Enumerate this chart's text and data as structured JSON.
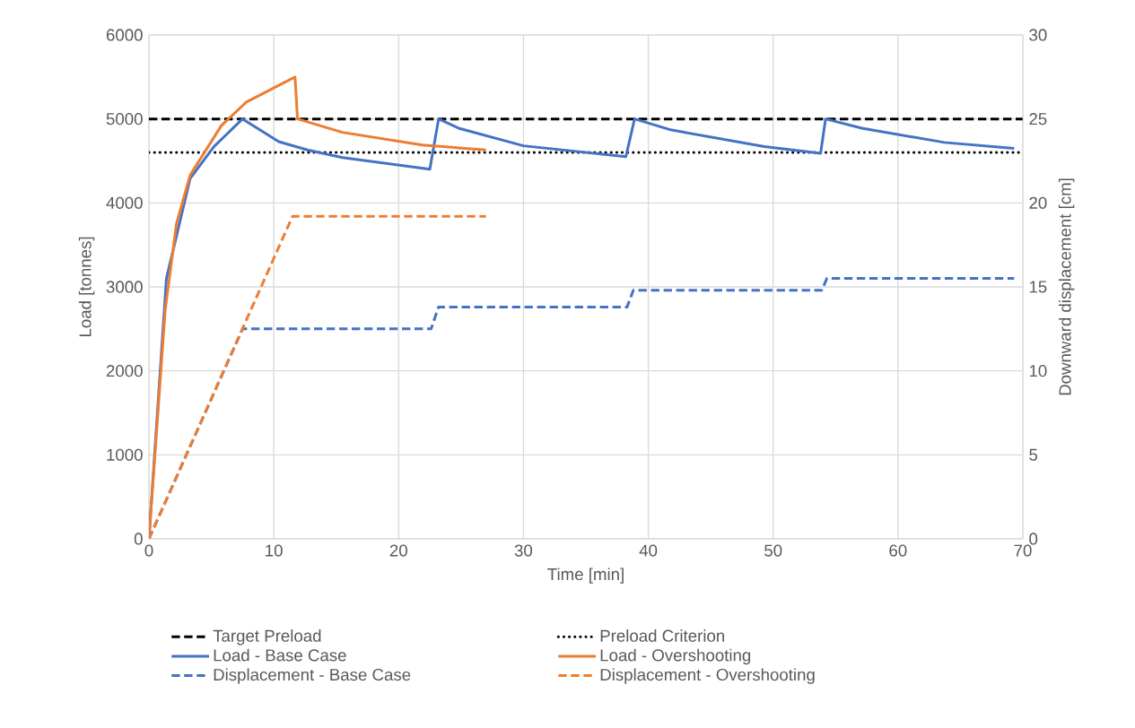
{
  "chart_data": {
    "type": "line",
    "xlabel": "Time [min]",
    "ylabel": "Load [tonnes]",
    "y2label": "Downward displacement [cm]",
    "xlim": [
      0,
      70
    ],
    "xticks": [
      0,
      10,
      20,
      30,
      40,
      50,
      60,
      70
    ],
    "ylim": [
      0,
      6000
    ],
    "yticks": [
      0,
      1000,
      2000,
      3000,
      4000,
      5000,
      6000
    ],
    "y2lim": [
      0,
      30
    ],
    "y2ticks": [
      0,
      5,
      10,
      15,
      20,
      25,
      30
    ],
    "grid": true,
    "legend": "bottom",
    "marker": "none",
    "series": [
      {
        "name": "Target Preload",
        "color": "#000000",
        "line_style": "dashed",
        "x": [
          0,
          70
        ],
        "values": [
          5000,
          5000
        ]
      },
      {
        "name": "Preload Criterion",
        "color": "#000000",
        "line_style": "dotted",
        "x": [
          0,
          70
        ],
        "values": [
          4600,
          4600
        ]
      },
      {
        "name": "Load - Base Case",
        "color": "#4472c4",
        "line_style": "solid",
        "x": [
          0,
          1.4,
          3.3,
          5.2,
          7.5,
          10.4,
          12.7,
          15.5,
          22.5,
          23.2,
          24.8,
          30.0,
          38.2,
          38.9,
          41.8,
          49.3,
          53.8,
          54.2,
          57.1,
          63.7,
          69.3
        ],
        "values": [
          0,
          3100,
          4290,
          4670,
          5000,
          4730,
          4630,
          4540,
          4400,
          5000,
          4890,
          4680,
          4550,
          5000,
          4870,
          4670,
          4590,
          5000,
          4890,
          4720,
          4650
        ]
      },
      {
        "name": "Load - Overshooting",
        "color": "#ed7d31",
        "line_style": "solid",
        "x": [
          0,
          1.3,
          2.2,
          3.3,
          5.8,
          7.8,
          11.7,
          11.9,
          15.5,
          21.9,
          27.0
        ],
        "values": [
          0,
          2720,
          3750,
          4330,
          4920,
          5200,
          5500,
          5000,
          4840,
          4690,
          4630
        ]
      },
      {
        "name": "Displacement - Base Case",
        "color": "#4472c4",
        "line_style": "dashed",
        "axis": "y2",
        "x": [
          0,
          7.5,
          22.6,
          23.2,
          38.3,
          38.8,
          53.9,
          54.3,
          69.3
        ],
        "values": [
          0,
          12.5,
          12.5,
          13.8,
          13.8,
          14.8,
          14.8,
          15.5,
          15.5
        ]
      },
      {
        "name": "Displacement - Overshooting",
        "color": "#ed7d31",
        "line_style": "dashed",
        "axis": "y2",
        "x": [
          0,
          11.5,
          27.0
        ],
        "values": [
          0,
          19.2,
          19.2
        ]
      }
    ]
  }
}
